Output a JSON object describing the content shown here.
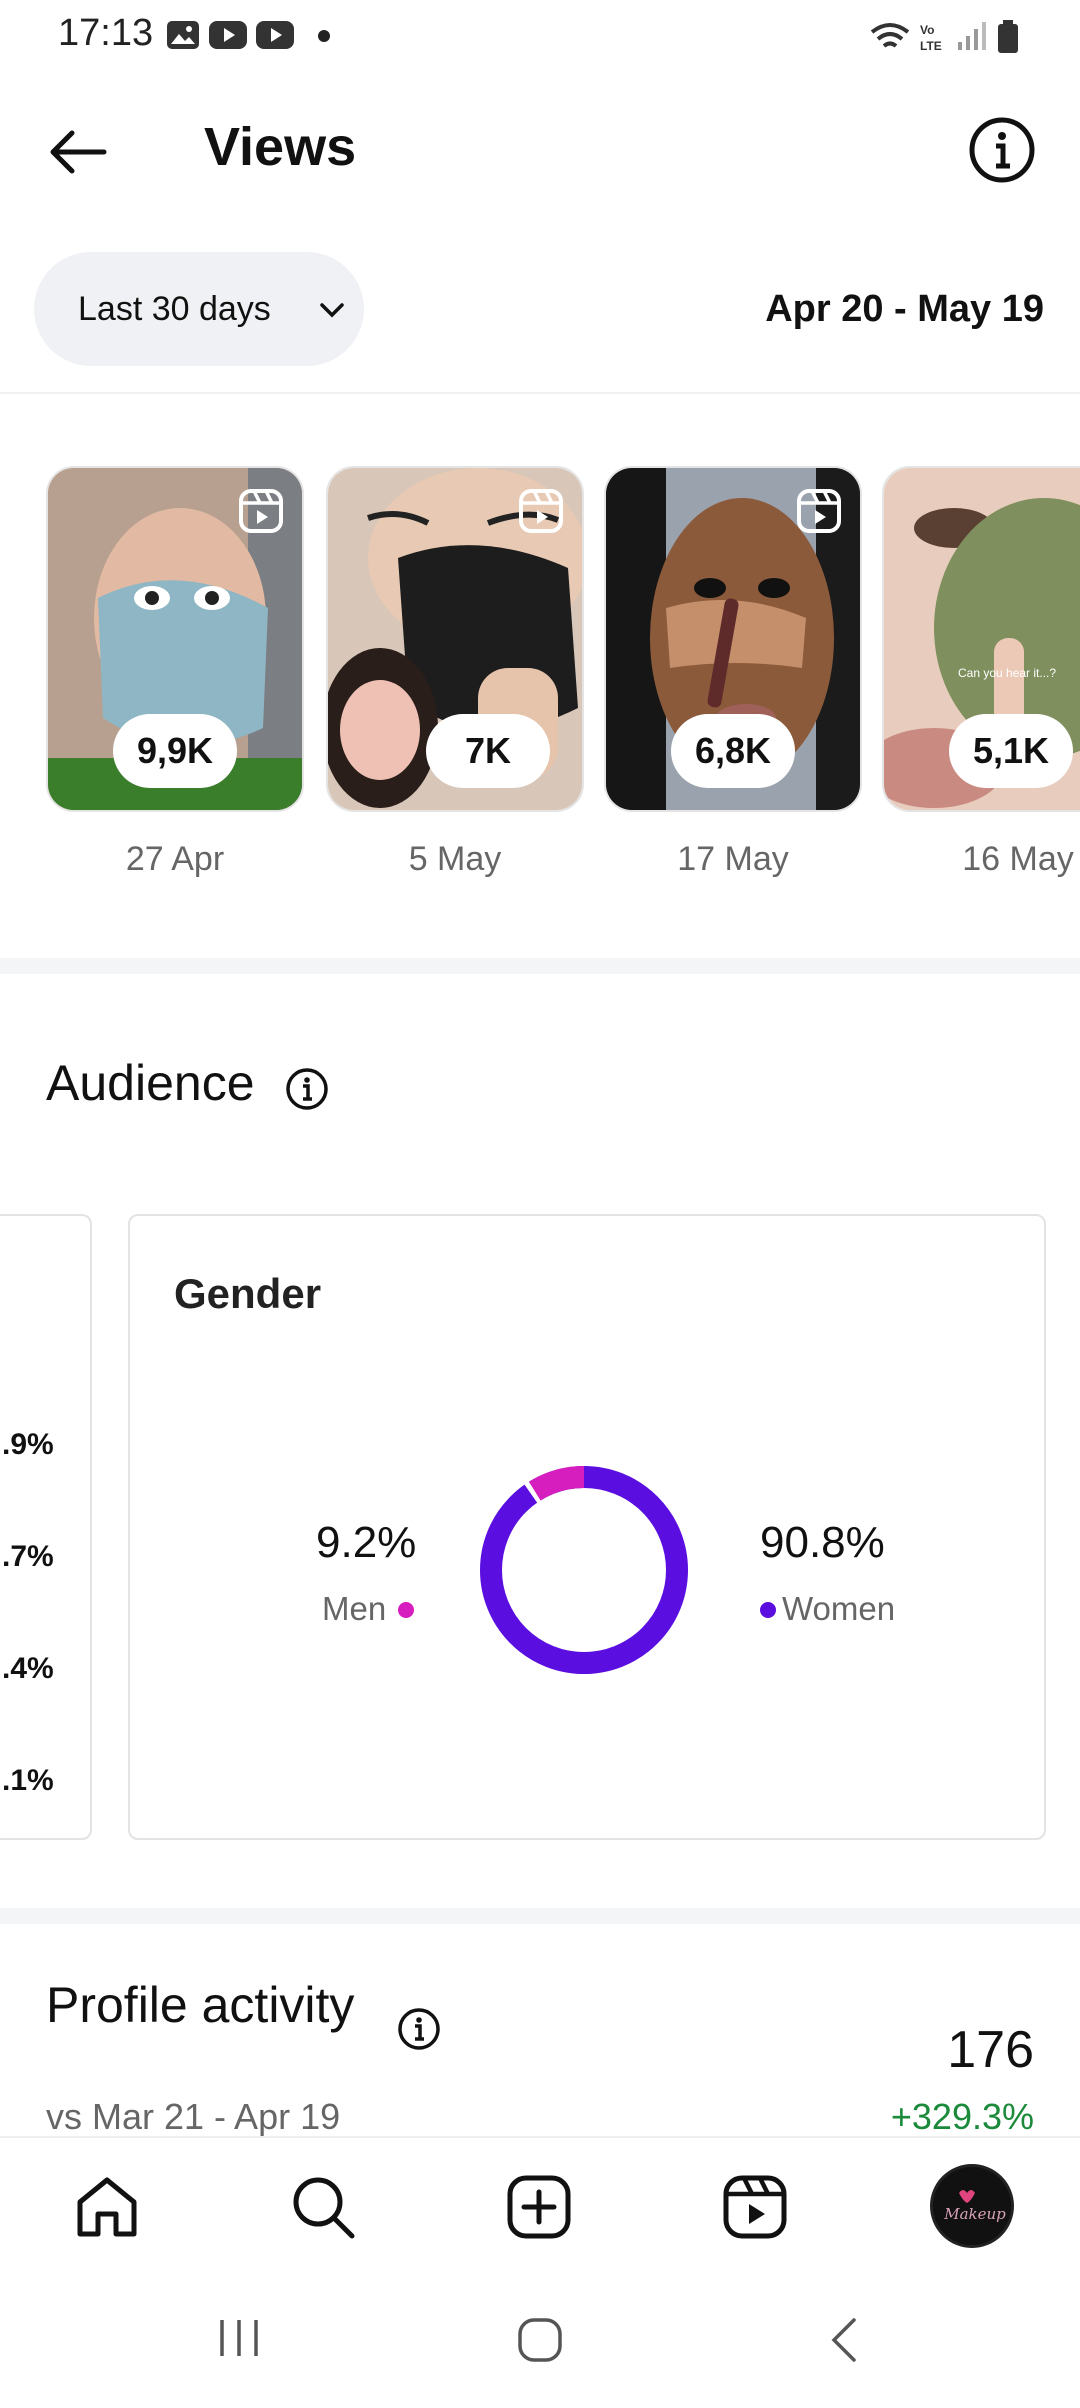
{
  "status_bar": {
    "time": "17:13",
    "icons": [
      "image-icon",
      "youtube-icon",
      "youtube-icon",
      "dot",
      "wifi-icon",
      "volte-icon",
      "signal-icon",
      "battery-icon"
    ]
  },
  "header": {
    "title": "Views",
    "back_icon": "arrow-left-icon",
    "info_icon": "info-icon"
  },
  "filter": {
    "selected": "Last 30 days",
    "date_range": "Apr 20 - May 19"
  },
  "reels": [
    {
      "views": "9,9K",
      "date": "27 Apr",
      "caption": ""
    },
    {
      "views": "7K",
      "date": "5 May",
      "caption": ""
    },
    {
      "views": "6,8K",
      "date": "17 May",
      "caption": ""
    },
    {
      "views": "5,1K",
      "date": "16 May",
      "caption": "Can you hear it...?"
    }
  ],
  "audience": {
    "title": "Audience",
    "left_card_values": [
      ".9%",
      ".7%",
      ".4%",
      ".1%"
    ],
    "gender": {
      "title": "Gender",
      "men": {
        "label": "Men",
        "pct": "9.2%",
        "value": 9.2,
        "color": "#d61dbd"
      },
      "women": {
        "label": "Women",
        "pct": "90.8%",
        "value": 90.8,
        "color": "#5a0ee0"
      }
    }
  },
  "profile_activity": {
    "title": "Profile activity",
    "value": "176",
    "comparison": "vs Mar 21 - Apr 19",
    "change": "+329.3%"
  },
  "bottom_nav": [
    "home-icon",
    "search-icon",
    "create-icon",
    "reels-icon",
    "profile-avatar"
  ],
  "avatar_text": "Makeup",
  "system_nav": [
    "recents-icon",
    "home-circle-icon",
    "back-icon"
  ]
}
